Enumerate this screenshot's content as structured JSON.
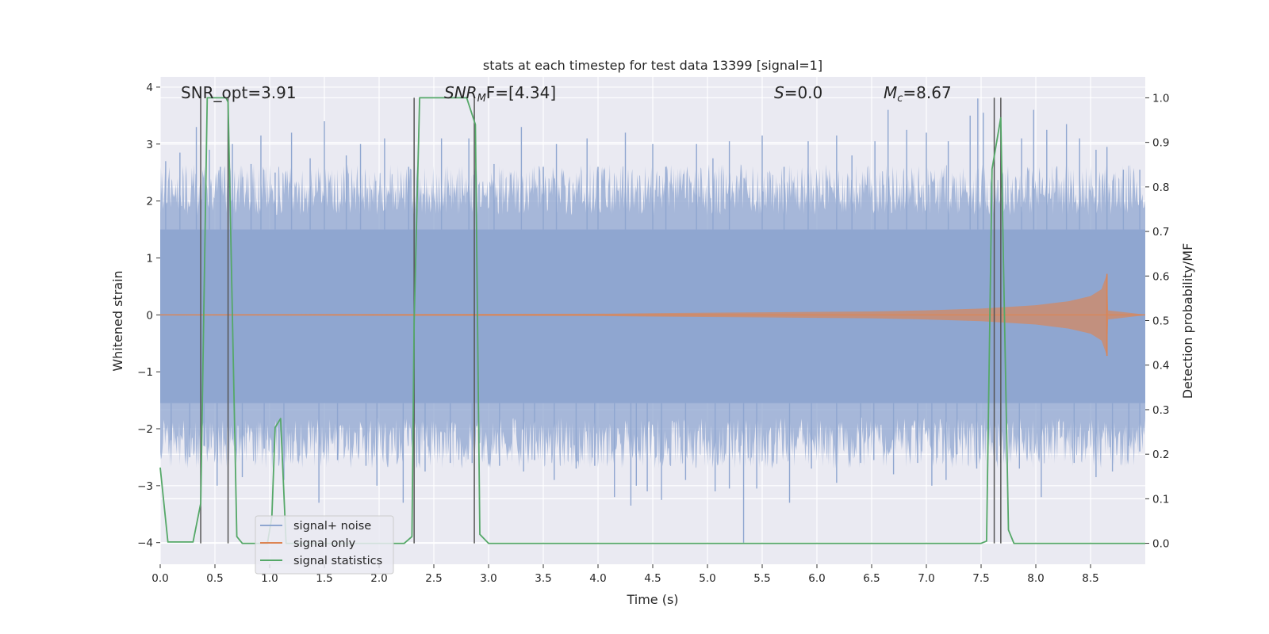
{
  "chart_data": {
    "type": "line",
    "title": "stats at each timestep for test data 13399 [signal=1]",
    "xlabel": "Time (s)",
    "ylabel": "Whitened strain",
    "ylabel_right": "Detection probability/MF",
    "xlim": [
      0,
      9
    ],
    "ylim": [
      -4.38,
      4.18
    ],
    "ylim_right": [
      -0.047,
      1.047
    ],
    "x_ticks": [
      0.0,
      0.5,
      1.0,
      1.5,
      2.0,
      2.5,
      3.0,
      3.5,
      4.0,
      4.5,
      5.0,
      5.5,
      6.0,
      6.5,
      7.0,
      7.5,
      8.0,
      8.5
    ],
    "x_tick_labels": [
      "0.0",
      "0.5",
      "1.0",
      "1.5",
      "2.0",
      "2.5",
      "3.0",
      "3.5",
      "4.0",
      "4.5",
      "5.0",
      "5.5",
      "6.0",
      "6.5",
      "7.0",
      "7.5",
      "8.0",
      "8.5"
    ],
    "y_ticks": [
      -4,
      -3,
      -2,
      -1,
      0,
      1,
      2,
      3,
      4
    ],
    "y_tick_labels": [
      "−4",
      "−3",
      "−2",
      "−1",
      "0",
      "1",
      "2",
      "3",
      "4"
    ],
    "y_ticks_right": [
      0.0,
      0.1,
      0.2,
      0.3,
      0.4,
      0.5,
      0.6,
      0.7,
      0.8,
      0.9,
      1.0
    ],
    "y_tick_labels_right": [
      "0.0",
      "0.1",
      "0.2",
      "0.3",
      "0.4",
      "0.5",
      "0.6",
      "0.7",
      "0.8",
      "0.9",
      "1.0"
    ],
    "grid": true,
    "legend_position": "lower-left",
    "annotations": {
      "snr_opt": "SNR_opt=3.91",
      "snr_mf_var": "SNR",
      "snr_mf_sub": "M",
      "snr_mf_rest": "F=[4.34]",
      "s_var": "S",
      "s_rest": "=0.0",
      "mc_var": "M",
      "mc_sub": "c",
      "mc_rest": "=8.67"
    },
    "series": [
      {
        "name": "signal+ noise",
        "color": "#8fa6d0",
        "noise_band": {
          "core_lo": -1.55,
          "core_hi": 1.5
        },
        "peaks": [
          [
            0.05,
            2.7
          ],
          [
            0.18,
            2.85
          ],
          [
            0.33,
            3.3
          ],
          [
            0.45,
            2.9
          ],
          [
            0.55,
            2.6
          ],
          [
            0.66,
            3.0
          ],
          [
            0.83,
            2.65
          ],
          [
            0.92,
            3.15
          ],
          [
            1.05,
            2.5
          ],
          [
            1.2,
            3.2
          ],
          [
            1.37,
            2.75
          ],
          [
            1.5,
            3.4
          ],
          [
            1.7,
            2.8
          ],
          [
            1.83,
            3.0
          ],
          [
            2.05,
            3.1
          ],
          [
            2.27,
            2.6
          ],
          [
            2.57,
            3.1
          ],
          [
            2.82,
            3.1
          ],
          [
            3.05,
            2.65
          ],
          [
            3.3,
            3.3
          ],
          [
            3.5,
            2.6
          ],
          [
            3.62,
            3.0
          ],
          [
            3.9,
            3.1
          ],
          [
            4.0,
            2.6
          ],
          [
            4.25,
            3.2
          ],
          [
            4.5,
            3.0
          ],
          [
            4.62,
            2.6
          ],
          [
            4.9,
            3.0
          ],
          [
            5.05,
            2.75
          ],
          [
            5.2,
            3.05
          ],
          [
            5.5,
            3.15
          ],
          [
            5.7,
            2.6
          ],
          [
            5.92,
            3.05
          ],
          [
            6.18,
            3.15
          ],
          [
            6.32,
            2.8
          ],
          [
            6.53,
            3.05
          ],
          [
            6.65,
            3.6
          ],
          [
            6.82,
            3.25
          ],
          [
            7.0,
            3.2
          ],
          [
            7.2,
            3.05
          ],
          [
            7.4,
            3.5
          ],
          [
            7.47,
            3.8
          ],
          [
            7.52,
            3.55
          ],
          [
            7.87,
            3.1
          ],
          [
            7.98,
            3.6
          ],
          [
            8.1,
            3.25
          ],
          [
            8.28,
            3.35
          ],
          [
            8.4,
            3.1
          ],
          [
            8.55,
            2.9
          ],
          [
            8.65,
            2.95
          ],
          [
            8.8,
            2.55
          ],
          [
            8.95,
            2.55
          ]
        ],
        "troughs": [
          [
            0.1,
            -2.2
          ],
          [
            0.27,
            -2.5
          ],
          [
            0.4,
            -2.3
          ],
          [
            0.52,
            -3.0
          ],
          [
            0.62,
            -2.55
          ],
          [
            0.75,
            -2.85
          ],
          [
            0.95,
            -2.35
          ],
          [
            1.13,
            -2.9
          ],
          [
            1.45,
            -3.3
          ],
          [
            1.62,
            -2.55
          ],
          [
            1.88,
            -2.65
          ],
          [
            1.98,
            -3.0
          ],
          [
            2.22,
            -3.3
          ],
          [
            2.42,
            -2.75
          ],
          [
            2.65,
            -2.6
          ],
          [
            2.85,
            -2.6
          ],
          [
            3.1,
            -2.65
          ],
          [
            3.32,
            -2.75
          ],
          [
            3.42,
            -2.55
          ],
          [
            3.6,
            -2.9
          ],
          [
            3.8,
            -2.7
          ],
          [
            3.97,
            -2.65
          ],
          [
            4.15,
            -3.2
          ],
          [
            4.3,
            -3.35
          ],
          [
            4.35,
            -3.0
          ],
          [
            4.45,
            -3.1
          ],
          [
            4.58,
            -3.25
          ],
          [
            4.8,
            -2.9
          ],
          [
            5.07,
            -3.1
          ],
          [
            5.2,
            -3.05
          ],
          [
            5.33,
            -4.0
          ],
          [
            5.45,
            -3.05
          ],
          [
            5.75,
            -3.3
          ],
          [
            5.95,
            -2.7
          ],
          [
            6.18,
            -2.95
          ],
          [
            6.4,
            -2.6
          ],
          [
            6.52,
            -2.55
          ],
          [
            6.7,
            -2.8
          ],
          [
            6.92,
            -2.6
          ],
          [
            7.05,
            -3.0
          ],
          [
            7.18,
            -2.9
          ],
          [
            7.28,
            -2.45
          ],
          [
            7.46,
            -2.7
          ],
          [
            7.68,
            -2.6
          ],
          [
            7.85,
            -2.7
          ],
          [
            8.05,
            -3.2
          ],
          [
            8.35,
            -2.6
          ],
          [
            8.55,
            -2.85
          ],
          [
            8.7,
            -2.75
          ],
          [
            8.85,
            -2.3
          ],
          [
            8.95,
            -2.4
          ]
        ]
      },
      {
        "name": "signal only",
        "color": "#dd8452",
        "chirp_envelope": [
          [
            0.0,
            0.01
          ],
          [
            4.0,
            0.02
          ],
          [
            4.5,
            0.03
          ],
          [
            5.5,
            0.045
          ],
          [
            6.5,
            0.06
          ],
          [
            7.0,
            0.08
          ],
          [
            7.5,
            0.11
          ],
          [
            8.0,
            0.17
          ],
          [
            8.3,
            0.24
          ],
          [
            8.5,
            0.33
          ],
          [
            8.6,
            0.45
          ],
          [
            8.65,
            0.72
          ],
          [
            8.66,
            0.08
          ],
          [
            9.0,
            0.005
          ]
        ],
        "merger_time": 8.65
      },
      {
        "name": "signal statistics",
        "color": "#55a868",
        "axis": "right",
        "x": [
          0.0,
          0.07,
          0.3,
          0.37,
          0.43,
          0.6,
          0.62,
          0.7,
          0.75,
          0.98,
          1.02,
          1.05,
          1.1,
          1.15,
          1.2,
          1.3,
          2.23,
          2.3,
          2.32,
          2.37,
          2.8,
          2.88,
          2.92,
          3.0,
          7.5,
          7.55,
          7.6,
          7.68,
          7.75,
          7.8,
          8.0,
          9.0
        ],
        "values": [
          0.17,
          0.003,
          0.003,
          0.09,
          1.0,
          1.0,
          0.99,
          0.015,
          0.0,
          0.0,
          0.06,
          0.26,
          0.28,
          0.0,
          0.0,
          0.0,
          0.0,
          0.015,
          0.5,
          1.0,
          1.0,
          0.94,
          0.02,
          0.0,
          0.0,
          0.005,
          0.84,
          0.955,
          0.03,
          0.0,
          0.0,
          0.0
        ]
      }
    ],
    "vertical_markers": [
      0.37,
      0.62,
      2.32,
      2.87,
      7.62,
      7.68
    ]
  }
}
